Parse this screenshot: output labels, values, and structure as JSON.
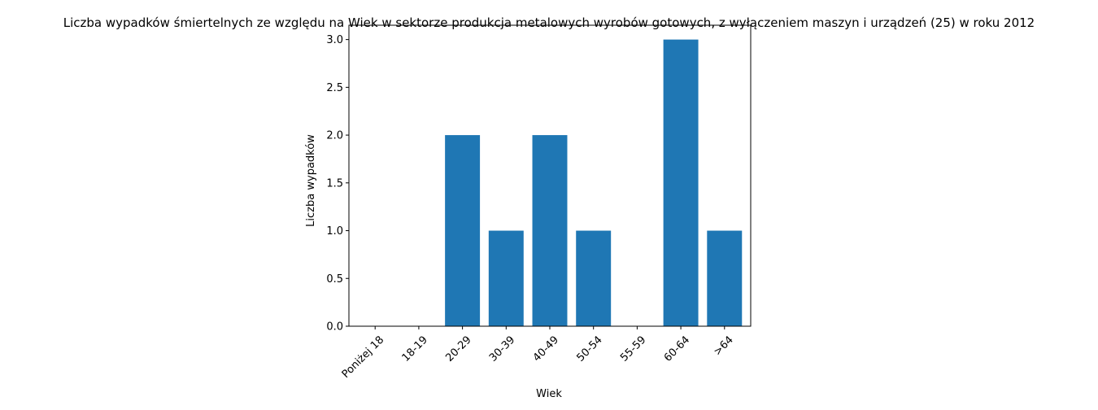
{
  "chart_data": {
    "type": "bar",
    "title": "Liczba wypadków śmiertelnych ze względu na Wiek w sektorze produkcja metalowych wyrobów gotowych, z wyłączeniem maszyn i urządzeń (25) w roku 2012",
    "xlabel": "Wiek",
    "ylabel": "Liczba wypadków",
    "categories": [
      "Poniżej 18",
      "18-19",
      "20-29",
      "30-39",
      "40-49",
      "50-54",
      "55-59",
      "60-64",
      ">64"
    ],
    "values": [
      0,
      0,
      2,
      1,
      2,
      1,
      0,
      3,
      1
    ],
    "ylim": [
      0,
      3.15
    ],
    "yticks": [
      0.0,
      0.5,
      1.0,
      1.5,
      2.0,
      2.5,
      3.0
    ],
    "ytick_labels": [
      "0.0",
      "0.5",
      "1.0",
      "1.5",
      "2.0",
      "2.5",
      "3.0"
    ],
    "bar_color": "#1f77b4",
    "grid": false,
    "legend": false
  }
}
